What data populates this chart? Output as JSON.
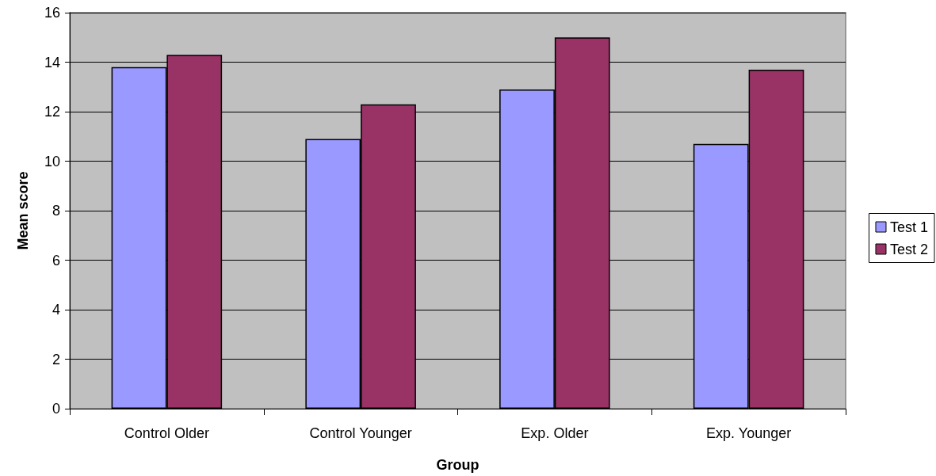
{
  "chart_data": {
    "type": "bar",
    "xlabel": "Group",
    "ylabel": "Mean score",
    "categories": [
      "Control Older",
      "Control Younger",
      "Exp. Older",
      "Exp. Younger"
    ],
    "series": [
      {
        "name": "Test 1",
        "color": "#9999ff",
        "values": [
          13.8,
          10.9,
          12.9,
          10.7
        ]
      },
      {
        "name": "Test 2",
        "color": "#993366",
        "values": [
          14.3,
          12.3,
          15.0,
          13.7
        ]
      }
    ],
    "ylim": [
      0,
      16
    ],
    "yticks": [
      0,
      2,
      4,
      6,
      8,
      10,
      12,
      14,
      16
    ],
    "grid": "y",
    "legend": "right"
  }
}
